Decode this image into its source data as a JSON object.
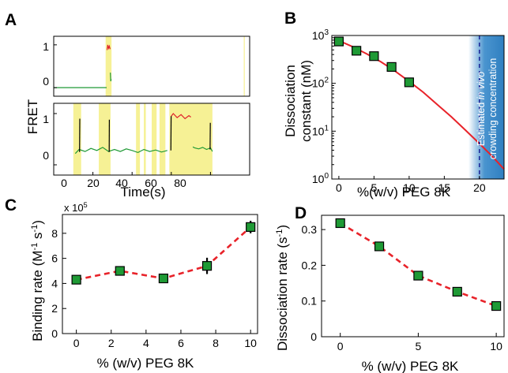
{
  "panels": {
    "A": {
      "letter": "A",
      "ylabel": "FRET",
      "xlabel": "Time(s)",
      "top_yticks": [
        "1",
        "0"
      ],
      "bottom_yticks": [
        "1",
        "0"
      ],
      "xticks": [
        "0",
        "20",
        "40",
        "60",
        "80"
      ]
    },
    "B": {
      "letter": "B"
    },
    "C": {
      "letter": "C"
    },
    "D": {
      "letter": "D"
    }
  },
  "colors": {
    "highlight": "#f6f195",
    "trace_green": "#1f9a35",
    "trace_red": "#e0202a",
    "trace_black": "#000000",
    "marker_green": "#1f9a35",
    "fit_red": "#e8232a",
    "vivo_blue": "#2f7fc0",
    "dash_blue": "#1f2a9a"
  },
  "chart_data": [
    {
      "panel": "A",
      "type": "line",
      "subplots": [
        {
          "ylim": [
            -0.2,
            1.2
          ],
          "xlim": [
            0,
            100
          ],
          "highlight_intervals": [
            [
              26.5,
              29.5
            ],
            [
              97,
              97.5
            ]
          ],
          "segments": [
            {
              "color": "green",
              "x": [
                0,
                27
              ],
              "y": [
                0,
                0
              ]
            },
            {
              "color": "red",
              "x": [
                27.2,
                27.6,
                28.0,
                28.4,
                28.8
              ],
              "y": [
                0.88,
                1.0,
                0.92,
                0.97,
                0.9
              ]
            },
            {
              "color": "green",
              "x": [
                28.9,
                29.1,
                29.3
              ],
              "y": [
                0.35,
                0.15,
                0.2
              ]
            }
          ]
        },
        {
          "ylim": [
            -0.2,
            1.2
          ],
          "xlim": [
            0,
            100
          ],
          "highlight_intervals": [
            [
              10,
              14
            ],
            [
              23,
              29
            ],
            [
              42,
              44
            ],
            [
              46,
              47
            ],
            [
              50,
              52.5
            ],
            [
              54,
              57
            ],
            [
              59,
              81
            ]
          ],
          "segments": [
            {
              "color": "green",
              "x": [
                11,
                13,
                16,
                19,
                22,
                25,
                28,
                31,
                34,
                37,
                40,
                43,
                46,
                49,
                52,
                55,
                58
              ],
              "y": [
                0.22,
                0.3,
                0.26,
                0.32,
                0.28,
                0.34,
                0.26,
                0.3,
                0.26,
                0.31,
                0.28,
                0.24,
                0.3,
                0.26,
                0.29,
                0.25,
                0.28
              ]
            },
            {
              "color": "red",
              "x": [
                60,
                61,
                63,
                65,
                67,
                69,
                70
              ],
              "y": [
                0.95,
                1.0,
                0.92,
                0.98,
                0.9,
                0.96,
                0.93
              ]
            },
            {
              "color": "green",
              "x": [
                71,
                72,
                74,
                76,
                78,
                80,
                81
              ],
              "y": [
                0.35,
                0.33,
                0.31,
                0.34,
                0.3,
                0.33,
                0.26
              ]
            },
            {
              "color": "black",
              "x": [
                13.2,
                13.3
              ],
              "y": [
                0.25,
                0.9
              ]
            },
            {
              "color": "black",
              "x": [
                28.3,
                28.4
              ],
              "y": [
                0.25,
                0.88
              ]
            },
            {
              "color": "black",
              "x": [
                59.8,
                59.9
              ],
              "y": [
                0.28,
                0.95
              ]
            },
            {
              "color": "black",
              "x": [
                79.8,
                79.9
              ],
              "y": [
                0.3,
                0.82
              ]
            }
          ]
        }
      ]
    },
    {
      "panel": "B",
      "type": "scatter",
      "xlabel": "%(w/v) PEG 8K",
      "ylabel": "Dissociation constant (nM)",
      "yscale": "log",
      "xlim": [
        -1,
        23.5
      ],
      "ylim": [
        1,
        1000
      ],
      "xticks": [
        0,
        5,
        10,
        15,
        20
      ],
      "yticks": [
        1,
        10,
        100,
        1000
      ],
      "x": [
        0,
        2.5,
        5,
        7.5,
        10
      ],
      "y": [
        750,
        480,
        370,
        220,
        105
      ],
      "fit_x": [
        0,
        2,
        4,
        6,
        8,
        10,
        12,
        14,
        16,
        18,
        20,
        22,
        23.5
      ],
      "fit_y": [
        780,
        580,
        410,
        280,
        180,
        110,
        65,
        36,
        20,
        10.5,
        5.5,
        2.8,
        1.6
      ],
      "vline_x": 20,
      "annotation": "Estimated in vivo crowding concentration",
      "annotation_line1_a": "Estimated ",
      "annotation_line1_b": "in vivo",
      "annotation_line2": "crowding concentration"
    },
    {
      "panel": "C",
      "type": "line",
      "xlabel": "% (w/v) PEG 8K",
      "ylabel": "Binding rate (M-1 s-1)",
      "multiplier": "x 10",
      "multiplier_exp": "5",
      "xlim": [
        -0.8,
        10.4
      ],
      "ylim": [
        0,
        9.5
      ],
      "xticks": [
        0,
        2,
        4,
        6,
        8,
        10
      ],
      "yticks": [
        0,
        2,
        4,
        6,
        8
      ],
      "x": [
        0,
        2.5,
        5,
        7.5,
        10
      ],
      "y": [
        4.3,
        5.0,
        4.4,
        5.4,
        8.5
      ],
      "yerr": [
        0.15,
        0.15,
        0.15,
        0.65,
        0.5
      ]
    },
    {
      "panel": "D",
      "type": "line",
      "xlabel": "% (w/v) PEG 8K",
      "ylabel": "Dissociation rate (s-1)",
      "xlim": [
        -1.2,
        10.5
      ],
      "ylim": [
        0,
        0.34
      ],
      "xticks": [
        0,
        5,
        10
      ],
      "yticks": [
        0,
        0.1,
        0.2,
        0.3
      ],
      "x": [
        0,
        2.5,
        5,
        7.5,
        10
      ],
      "y": [
        0.318,
        0.253,
        0.171,
        0.126,
        0.086
      ],
      "yerr": [
        0.008,
        0.006,
        0.006,
        0.005,
        0.005
      ]
    }
  ]
}
